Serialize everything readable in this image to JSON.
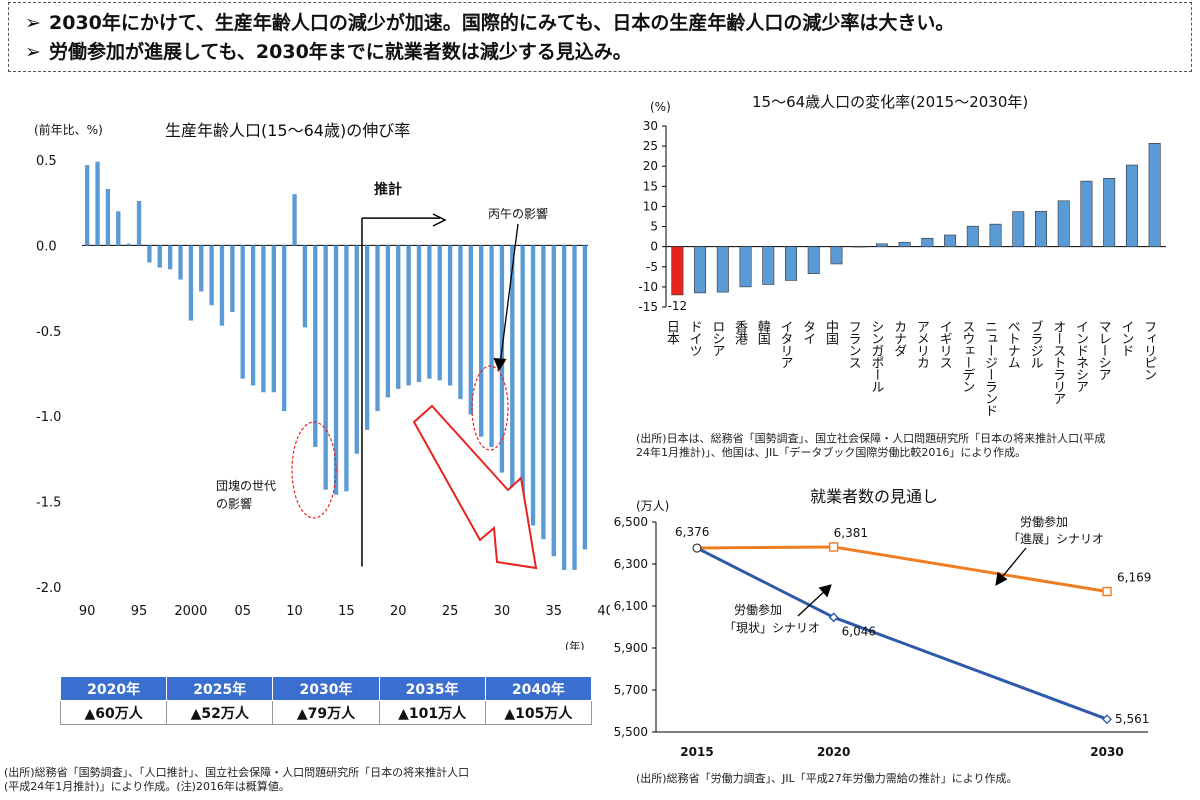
{
  "header": {
    "bullet": "➢",
    "lines": [
      "2030年にかけて、生産年齢人口の減少が加速。国際的にみても、日本の生産年齢人口の減少率は大きい。",
      "労働参加が進展しても、2030年までに就業者数は減少する見込み。"
    ]
  },
  "colors": {
    "bar_blue": "#5b9bd5",
    "bar_red": "#e8231f",
    "orange": "#ef7d22",
    "navy": "#2c5ba8",
    "table_header": "#3a6fd0",
    "annotation_red": "#e8231f"
  },
  "chart_data": [
    {
      "type": "bar",
      "title": "生産年齢人口(15〜64歳)の伸び率",
      "ylabel": "(前年比、%)",
      "xlabel": "(年)",
      "ylim": [
        -2.0,
        0.5
      ],
      "yticks": [
        "0.5",
        "0.0",
        "-0.5",
        "-1.0",
        "-1.5",
        "-2.0"
      ],
      "ytick_values": [
        0.5,
        0.0,
        -0.5,
        -1.0,
        -1.5,
        -2.0
      ],
      "x_start_year": 1990,
      "xtick_labels": [
        "90",
        "95",
        "2000",
        "05",
        "10",
        "15",
        "20",
        "25",
        "30",
        "35",
        "40"
      ],
      "xtick_years": [
        1990,
        1995,
        2000,
        2005,
        2010,
        2015,
        2020,
        2025,
        2030,
        2035,
        2040
      ],
      "values": [
        0.47,
        0.49,
        0.33,
        0.2,
        0.01,
        0.26,
        -0.1,
        -0.13,
        -0.14,
        -0.2,
        -0.44,
        -0.27,
        -0.35,
        -0.47,
        -0.39,
        -0.78,
        -0.82,
        -0.86,
        -0.86,
        -0.97,
        0.3,
        -0.48,
        -1.18,
        -1.43,
        -1.46,
        -1.44,
        -1.22,
        -1.08,
        -0.97,
        -0.89,
        -0.84,
        -0.82,
        -0.8,
        -0.78,
        -0.79,
        -0.82,
        -0.9,
        -0.99,
        -1.12,
        -1.18,
        -1.33,
        -1.43,
        -1.53,
        -1.64,
        -1.72,
        -1.82,
        -1.9,
        -1.9,
        -1.78
      ],
      "labels": {
        "estimate": "推計",
        "hinoe": "丙午の影響",
        "dankai_line1": "団塊の世代",
        "dankai_line2": "の影響"
      },
      "source": [
        "(出所)総務省「国勢調査」、「人口推計」、国立社会保障・人口問題研究所「日本の将来推計人口",
        "(平成24年1月推計)」により作成。(注)2016年は概算値。"
      ]
    },
    {
      "type": "bar",
      "title": "15〜64歳人口の変化率(2015〜2030年)",
      "ylabel": "(%)",
      "ylim": [
        -15,
        30
      ],
      "yticks": [
        "30",
        "25",
        "20",
        "15",
        "10",
        "5",
        "0",
        "-5",
        "-10",
        "-15"
      ],
      "ytick_values": [
        30,
        25,
        20,
        15,
        10,
        5,
        0,
        -5,
        -10,
        -15
      ],
      "categories": [
        "日本",
        "ドイツ",
        "ロシア",
        "香港",
        "韓国",
        "イタリア",
        "タイ",
        "中国",
        "フランス",
        "シンガポール",
        "カナダ",
        "アメリカ",
        "イギリス",
        "スウェーデン",
        "ニュージーランド",
        "ベトナム",
        "ブラジル",
        "オーストラリア",
        "インドネシア",
        "マレーシア",
        "インド",
        "フィリピン"
      ],
      "values": [
        -12,
        -11.5,
        -11.3,
        -10,
        -9.4,
        -8.4,
        -6.7,
        -4.3,
        0.1,
        0.7,
        1.1,
        2.1,
        2.9,
        5.1,
        5.6,
        8.7,
        8.8,
        11.4,
        16.3,
        17.0,
        20.3,
        25.7
      ],
      "highlight_index": 0,
      "value_labels": {
        "0": "-12"
      },
      "source": [
        "(出所)日本は、総務省「国勢調査」、国立社会保障・人口問題研究所「日本の将来推計人口(平成",
        "24年1月推計)」、他国は、JIL「データブック国際労働比較2016」により作成。"
      ]
    },
    {
      "type": "line",
      "title": "就業者数の見通し",
      "ylabel": "(万人)",
      "ylim": [
        5500,
        6500
      ],
      "yticks": [
        "6,500",
        "6,300",
        "6,100",
        "5,900",
        "5,700",
        "5,500"
      ],
      "ytick_values": [
        6500,
        6300,
        6100,
        5900,
        5700,
        5500
      ],
      "categories": [
        "2015",
        "2020",
        "2030"
      ],
      "x_years": [
        2015,
        2020,
        2030
      ],
      "series": [
        {
          "name_line1": "労働参加",
          "name_line2": "「進展」シナリオ",
          "values": [
            6376,
            6381,
            6169
          ],
          "labels": [
            "6,376",
            "6,381",
            "6,169"
          ],
          "color": "#ef7d22"
        },
        {
          "name_line1": "労働参加",
          "name_line2": "「現状」シナリオ",
          "values": [
            6376,
            6046,
            5561
          ],
          "labels": [
            "",
            "6,046",
            "5,561"
          ],
          "color": "#2c5ba8"
        }
      ],
      "source": [
        "(出所)総務省「労働力調査」、JIL「平成27年労働力需給の推計」により作成。"
      ]
    }
  ],
  "table": {
    "headers": [
      "2020年",
      "2025年",
      "2030年",
      "2035年",
      "2040年"
    ],
    "values": [
      "▲60万人",
      "▲52万人",
      "▲79万人",
      "▲101万人",
      "▲105万人"
    ]
  }
}
